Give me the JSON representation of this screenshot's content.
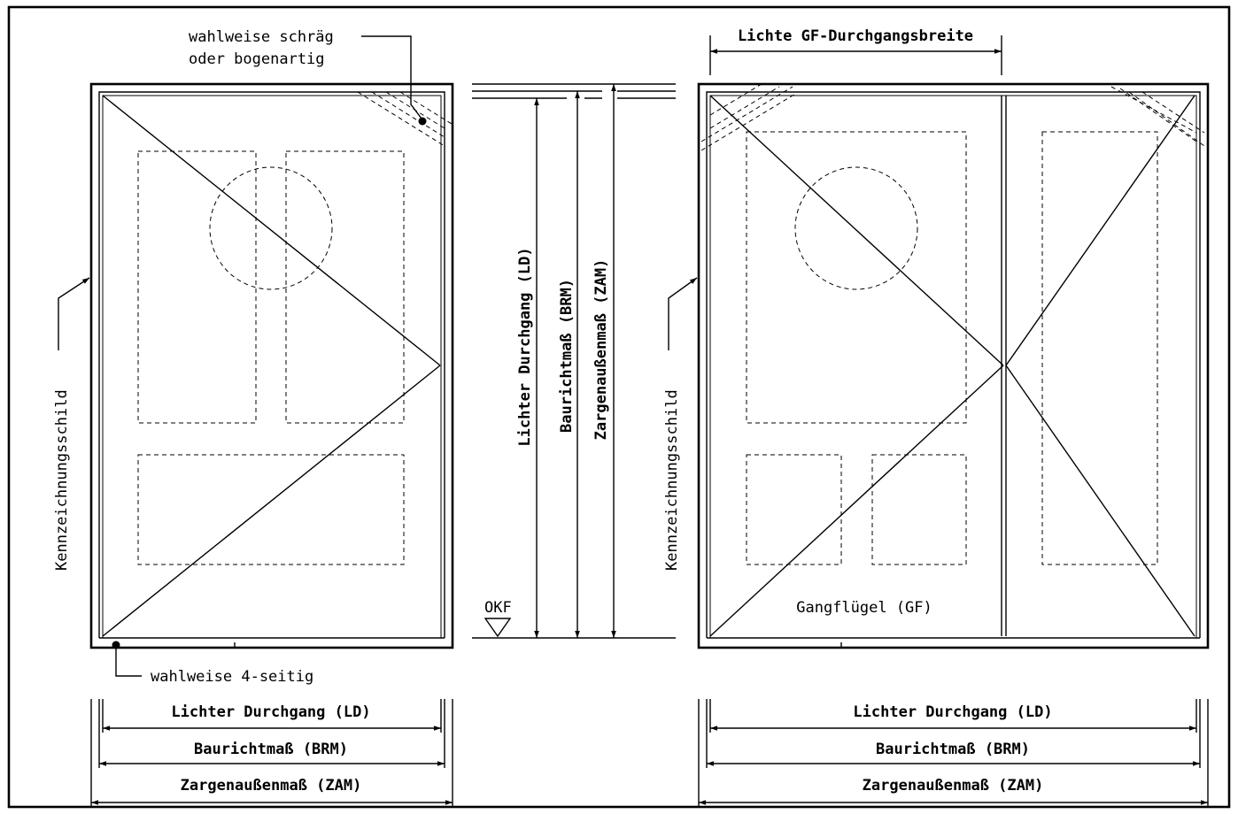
{
  "labels": {
    "note_slanted_line1": "wahlweise schräg",
    "note_slanted_line2": "oder bogenartig",
    "note_4sided": "wahlweise 4-seitig",
    "label_sign_left": "Kennzeichnungsschild",
    "label_sign_right": "Kennzeichnungsschild",
    "okf": "OKF",
    "clear_passage_width": "Lichte GF-Durchgangsbreite",
    "walking_leaf": "Gangflügel (GF)"
  },
  "dimensions": {
    "ld": "Lichter Durchgang (LD)",
    "brm": "Baurichtmaß (BRM)",
    "zam": "Zargenaußenmaß (ZAM)"
  }
}
